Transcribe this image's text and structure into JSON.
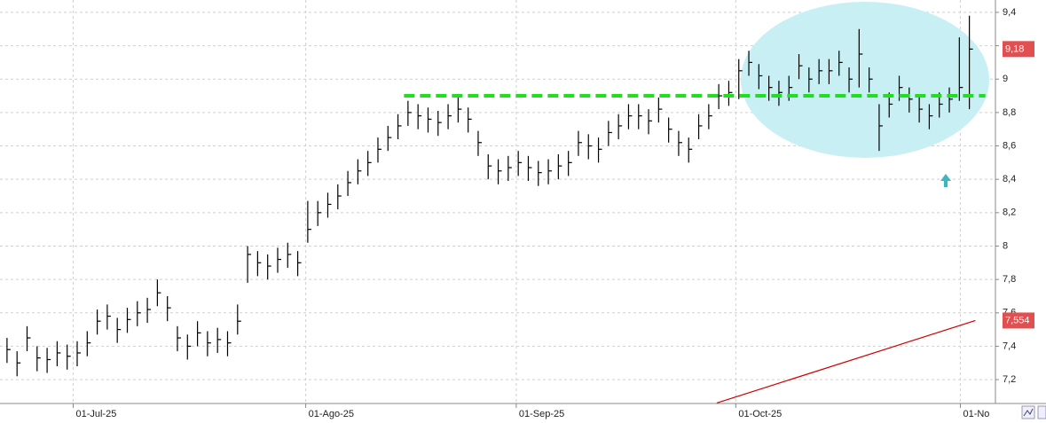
{
  "chart_data": {
    "type": "ohlc",
    "xlim": [
      -0.7,
      98.6
    ],
    "ylim": [
      7.057,
      9.474
    ],
    "yticks": [
      {
        "value": 7.2,
        "label": "7,2"
      },
      {
        "value": 7.4,
        "label": "7,4"
      },
      {
        "value": 7.6,
        "label": "7,6"
      },
      {
        "value": 7.8,
        "label": "7,8"
      },
      8,
      {
        "value": 8.2,
        "label": "8,2"
      },
      {
        "value": 8.4,
        "label": "8,4"
      },
      {
        "value": 8.6,
        "label": "8,6"
      },
      {
        "value": 8.8,
        "label": "8,8"
      },
      9,
      {
        "value": 9.2,
        "label": "9,2"
      },
      {
        "value": 9.4,
        "label": "9,4"
      }
    ],
    "xticks": [
      {
        "value": 6.6,
        "label": "01-Jul-25"
      },
      {
        "value": 29.8,
        "label": "01-Ago-25"
      },
      {
        "value": 50.8,
        "label": "01-Sep-25"
      },
      {
        "value": 72.7,
        "label": "01-Oct-25"
      },
      {
        "value": 95.1,
        "label": "01-No"
      }
    ],
    "grid": true,
    "series": [
      {
        "color": "#000000",
        "high": [
          7.45,
          7.37,
          7.52,
          7.4,
          7.39,
          7.43,
          7.41,
          7.43,
          7.49,
          7.62,
          7.65,
          7.57,
          7.63,
          7.67,
          7.69,
          7.8,
          7.7,
          7.52,
          7.47,
          7.55,
          7.49,
          7.51,
          7.49,
          7.65,
          8.0,
          7.97,
          7.95,
          7.99,
          8.02,
          7.97,
          8.27,
          8.27,
          8.32,
          8.37,
          8.45,
          8.52,
          8.57,
          8.65,
          8.72,
          8.79,
          8.87,
          8.85,
          8.83,
          8.81,
          8.85,
          8.89,
          8.83,
          8.69,
          8.55,
          8.52,
          8.54,
          8.57,
          8.54,
          8.51,
          8.52,
          8.55,
          8.57,
          8.69,
          8.67,
          8.65,
          8.75,
          8.79,
          8.85,
          8.85,
          8.82,
          8.89,
          8.77,
          8.69,
          8.65,
          8.79,
          8.85,
          8.97,
          8.99,
          9.12,
          9.17,
          9.09,
          9.02,
          8.99,
          9.02,
          9.15,
          9.07,
          9.12,
          9.12,
          9.17,
          9.07,
          9.3,
          9.07,
          8.85,
          8.92,
          9.02,
          8.95,
          8.89,
          8.85,
          8.92,
          8.95,
          9.25,
          9.38
        ],
        "low": [
          7.3,
          7.22,
          7.37,
          7.25,
          7.24,
          7.28,
          7.26,
          7.28,
          7.34,
          7.47,
          7.5,
          7.42,
          7.48,
          7.52,
          7.54,
          7.64,
          7.55,
          7.37,
          7.32,
          7.4,
          7.34,
          7.36,
          7.34,
          7.47,
          7.78,
          7.82,
          7.8,
          7.84,
          7.87,
          7.82,
          8.02,
          8.12,
          8.17,
          8.22,
          8.3,
          8.37,
          8.42,
          8.5,
          8.57,
          8.64,
          8.72,
          8.7,
          8.68,
          8.66,
          8.7,
          8.74,
          8.68,
          8.54,
          8.4,
          8.37,
          8.39,
          8.42,
          8.39,
          8.36,
          8.37,
          8.4,
          8.42,
          8.54,
          8.52,
          8.5,
          8.6,
          8.64,
          8.7,
          8.7,
          8.67,
          8.74,
          8.62,
          8.54,
          8.5,
          8.64,
          8.7,
          8.82,
          8.84,
          8.88,
          9.02,
          8.94,
          8.87,
          8.84,
          8.87,
          9.0,
          8.92,
          8.97,
          8.97,
          9.02,
          8.92,
          8.95,
          8.92,
          8.57,
          8.77,
          8.87,
          8.8,
          8.74,
          8.7,
          8.77,
          8.8,
          8.87,
          8.82
        ],
        "close": [
          7.38,
          7.3,
          7.45,
          7.33,
          7.32,
          7.36,
          7.34,
          7.36,
          7.42,
          7.55,
          7.58,
          7.5,
          7.56,
          7.6,
          7.62,
          7.72,
          7.63,
          7.45,
          7.4,
          7.48,
          7.42,
          7.44,
          7.42,
          7.55,
          7.95,
          7.9,
          7.88,
          7.92,
          7.95,
          7.9,
          8.1,
          8.2,
          8.25,
          8.3,
          8.38,
          8.45,
          8.5,
          8.58,
          8.65,
          8.72,
          8.8,
          8.78,
          8.76,
          8.74,
          8.78,
          8.82,
          8.76,
          8.62,
          8.48,
          8.45,
          8.47,
          8.5,
          8.47,
          8.44,
          8.45,
          8.48,
          8.5,
          8.62,
          8.6,
          8.58,
          8.68,
          8.72,
          8.78,
          8.78,
          8.75,
          8.82,
          8.7,
          8.62,
          8.58,
          8.72,
          8.78,
          8.9,
          8.92,
          9.05,
          9.1,
          9.02,
          8.95,
          8.92,
          8.95,
          9.08,
          9.0,
          9.05,
          9.05,
          9.1,
          9.0,
          9.15,
          9.0,
          8.72,
          8.85,
          8.95,
          8.88,
          8.82,
          8.78,
          8.85,
          8.88,
          8.95,
          9.18
        ]
      }
    ],
    "moving_average": {
      "color": "#d00000",
      "x": [
        70.8,
        96.6
      ],
      "values": [
        7.06,
        7.554
      ]
    },
    "support": {
      "color": "#22dd22",
      "value": 8.9,
      "x": [
        39.6,
        97.6
      ]
    },
    "price_labels": [
      {
        "value": 9.18,
        "label": "9,18"
      },
      {
        "value": 7.554,
        "label": "7,554"
      }
    ],
    "price_label_color": "#e05050"
  }
}
